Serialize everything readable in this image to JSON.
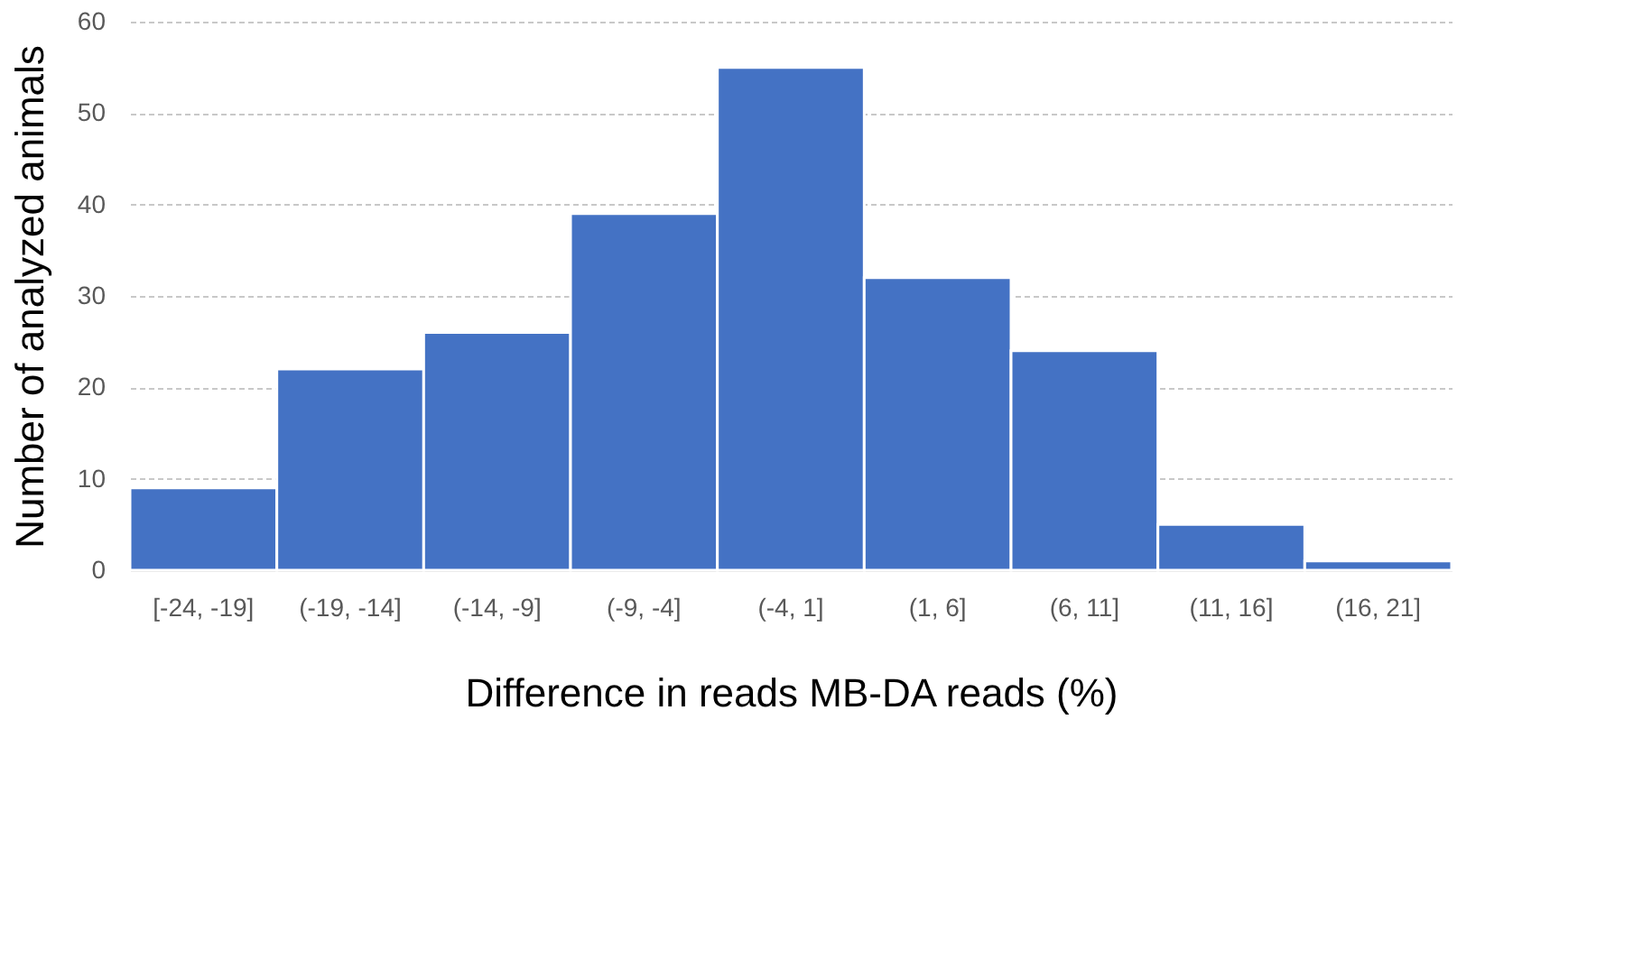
{
  "chart_data": {
    "type": "bar",
    "xlabel": "Difference in reads MB-DA reads (%)",
    "ylabel": "Number of analyzed animals",
    "categories": [
      "[-24, -19]",
      "(-19, -14]",
      "(-14, -9]",
      "(-9, -4]",
      "(-4, 1]",
      "(1, 6]",
      "(6, 11]",
      "(11, 16]",
      "(16, 21]"
    ],
    "values": [
      9,
      22,
      26,
      39,
      55,
      32,
      24,
      5,
      1
    ],
    "color": "#4472c4",
    "ylim": [
      0,
      60
    ],
    "yticks": [
      0,
      10,
      20,
      30,
      40,
      50,
      60
    ],
    "grid": "y"
  }
}
